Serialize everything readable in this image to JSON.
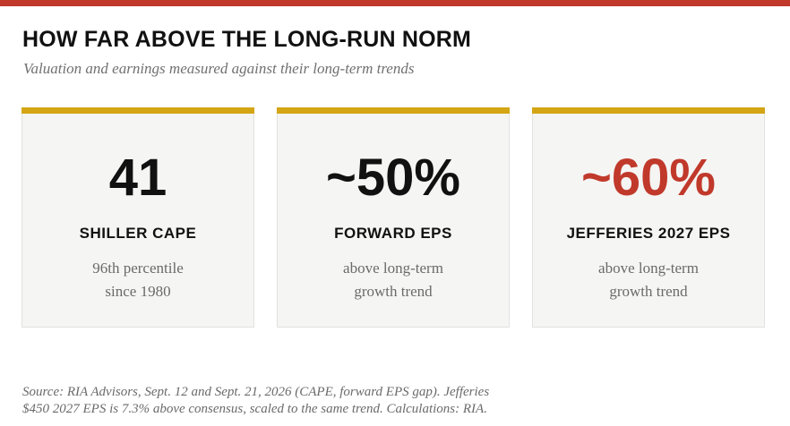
{
  "header": {
    "title": "HOW FAR ABOVE THE LONG-RUN NORM",
    "subtitle": "Valuation and earnings measured against their long-term trends"
  },
  "colors": {
    "top_bar": "#c0392b",
    "card_accent": "#d4a514",
    "highlight_value": "#c0392b"
  },
  "cards": [
    {
      "value": "41",
      "label": "SHILLER CAPE",
      "desc_line1": "96th percentile",
      "desc_line2": "since 1980"
    },
    {
      "value": "~50%",
      "label": "FORWARD EPS",
      "desc_line1": "above long-term",
      "desc_line2": "growth trend"
    },
    {
      "value": "~60%",
      "label": "JEFFERIES 2027 EPS",
      "desc_line1": "above long-term",
      "desc_line2": "growth trend"
    }
  ],
  "footer": {
    "source_line1": "Source: RIA Advisors, Sept. 12 and Sept. 21, 2026 (CAPE, forward EPS gap). Jefferies",
    "source_line2": "$450 2027 EPS is 7.3% above consensus, scaled to the same trend. Calculations: RIA."
  }
}
